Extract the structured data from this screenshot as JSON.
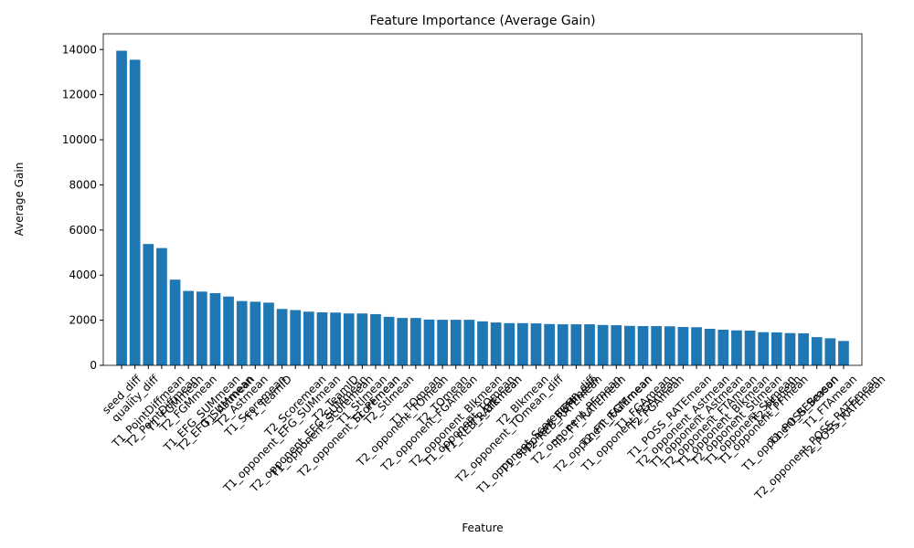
{
  "chart_data": {
    "type": "bar",
    "title": "Feature Importance (Average Gain)",
    "x_label": "Feature",
    "y_label": "Average Gain",
    "color": "#1f77b4",
    "categories": [
      "seed_diff",
      "quality_diff",
      "T1_PointDiffmean",
      "T2_PointDiffmean",
      "T1_FGMmean",
      "T2_FGMmean",
      "T1_EFG_SUMmean",
      "T2_EFG_SUMmean",
      "T1_Astmean",
      "T2_Astmean",
      "T1_Scoremean",
      "T1_TeamID",
      "T1_opponent_EFG_SUMmean",
      "T2_Scoremean",
      "T2_opponent_EFG_SUMmean",
      "T1_opponent_Scoremean",
      "T2_TeamID",
      "T2_opponent_Scoremean",
      "T1_Stlmean",
      "T1_PFmean",
      "T2_Stlmean",
      "T2_opponent_TOmean",
      "T1_TOmean",
      "T2_opponent_FGAmean",
      "T2_TOmean",
      "T2_opponent_Blkmean",
      "T1_opponent_TOmean",
      "T1_REB_RATEmean",
      "T1_Blkmean",
      "T2_opponent_TOmean_diff",
      "T2_Blkmean",
      "T1_opponent_Scoremean_diff",
      "T1_opponent_FGMmean",
      "T2_REB_RATEmean",
      "T2_opponent_PFmean",
      "T1_FT_RATEmean",
      "T2_opponent_FGMmean",
      "T2_FT_RATEmean",
      "T1_opponent_FGAmean",
      "T1_FGAmean",
      "T2_FGAmean",
      "T1_POSS_RATEmean",
      "T2_opponent_Astmean",
      "T1_opponent_Astmean",
      "T2_opponent_FTAmean",
      "T1_opponent_Blkmean",
      "T2_opponent_Stlmean",
      "T1_opponent_Stlmean",
      "T1_opponent_PFmean",
      "T2_PFmean",
      "T1_opponent_REBmean",
      "T1_POSS_Season",
      "T2_opponent_POSS_RATEmean",
      "T1_FTAmean",
      "T2_POSS_RATEmean"
    ],
    "values": [
      13950,
      13550,
      5380,
      5200,
      3800,
      3300,
      3270,
      3200,
      3050,
      2850,
      2820,
      2780,
      2500,
      2450,
      2380,
      2350,
      2340,
      2300,
      2300,
      2270,
      2150,
      2100,
      2100,
      2030,
      2020,
      2020,
      2020,
      1950,
      1900,
      1870,
      1870,
      1860,
      1830,
      1820,
      1820,
      1820,
      1790,
      1780,
      1750,
      1740,
      1740,
      1730,
      1700,
      1690,
      1620,
      1580,
      1550,
      1540,
      1470,
      1460,
      1430,
      1420,
      1250,
      1200,
      1080
    ],
    "ylim": [
      0,
      14700
    ],
    "yticks": [
      0,
      2000,
      4000,
      6000,
      8000,
      10000,
      12000,
      14000
    ]
  }
}
